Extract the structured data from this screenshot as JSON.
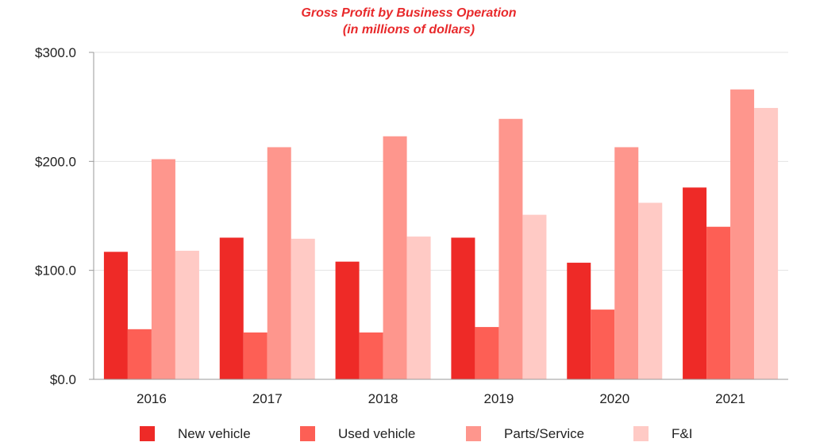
{
  "chart_data": {
    "type": "bar",
    "title": "Gross Profit by Business Operation",
    "subtitle": "(in millions of dollars)",
    "xlabel": "",
    "ylabel": "",
    "categories": [
      "2016",
      "2017",
      "2018",
      "2019",
      "2020",
      "2021"
    ],
    "series": [
      {
        "name": "New vehicle",
        "color": "#ee2a27",
        "values": [
          117,
          130,
          108,
          130,
          107,
          176
        ]
      },
      {
        "name": "Used vehicle",
        "color": "#fd5f55",
        "values": [
          46,
          43,
          43,
          48,
          64,
          140
        ]
      },
      {
        "name": "Parts/Service",
        "color": "#fe968d",
        "values": [
          202,
          213,
          223,
          239,
          213,
          266
        ]
      },
      {
        "name": "F&I",
        "color": "#ffcac5",
        "values": [
          118,
          129,
          131,
          151,
          162,
          249
        ]
      }
    ],
    "ylim": [
      0,
      300
    ],
    "yticks": [
      0,
      100,
      200,
      300
    ],
    "ytick_labels": [
      "$0.0",
      "$100.0",
      "$200.0",
      "$300.0"
    ],
    "grid": true,
    "legend_position": "bottom",
    "title_color": "#e8292b"
  }
}
